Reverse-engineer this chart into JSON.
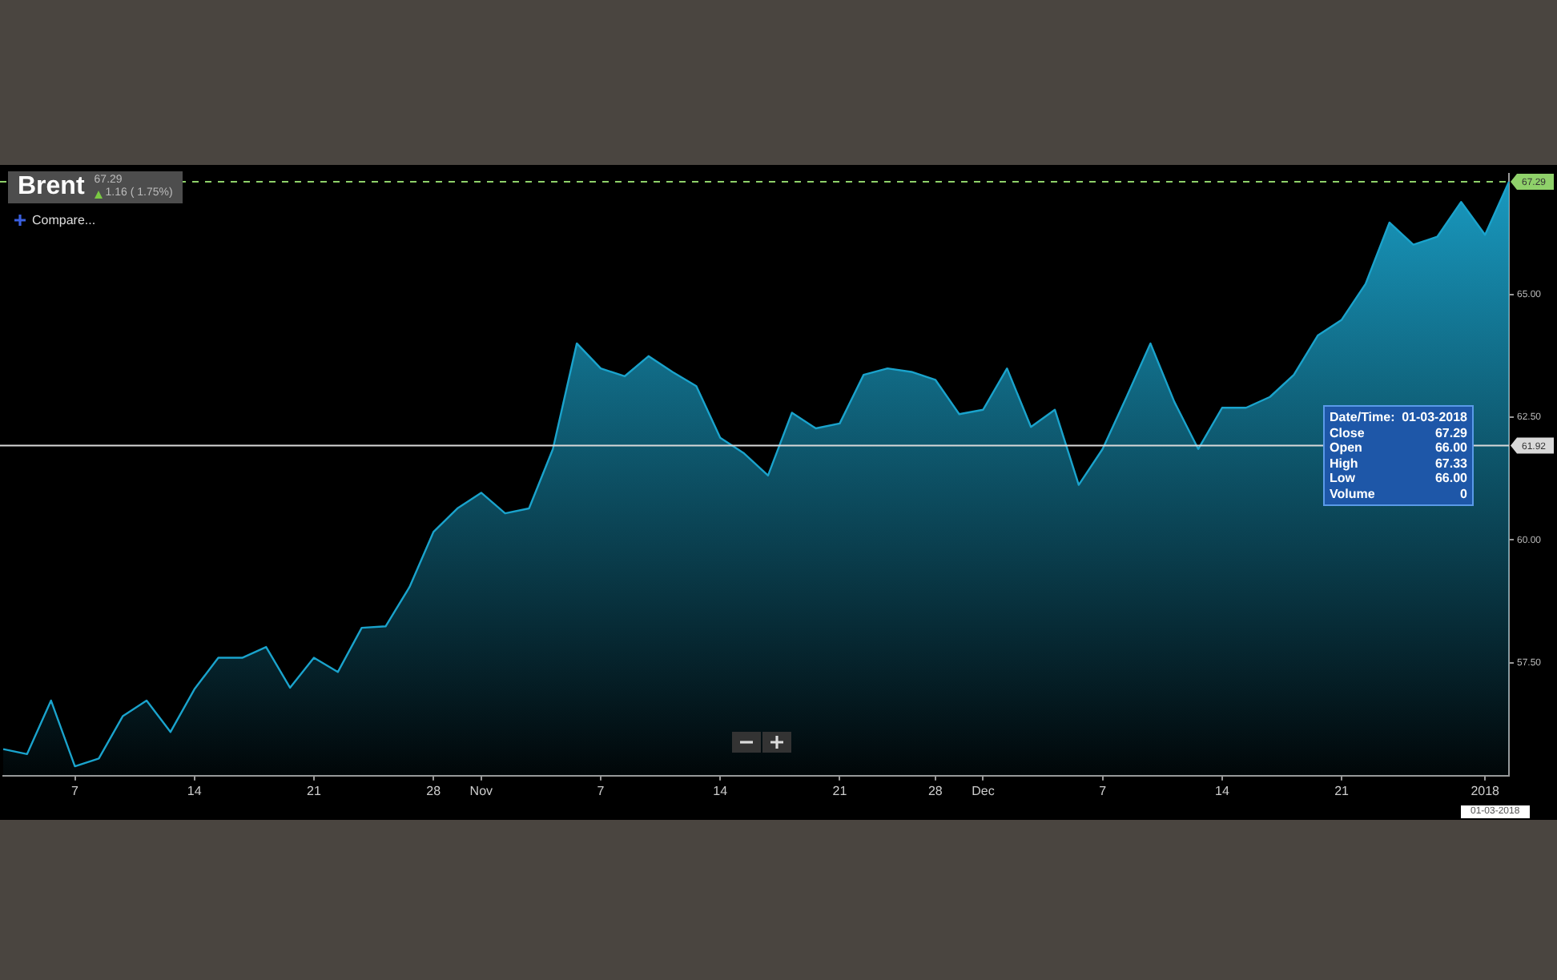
{
  "chart_data": {
    "type": "area",
    "title": "Brent",
    "subtitle": "67.29",
    "categories": [
      null,
      null,
      null,
      "7",
      null,
      null,
      null,
      null,
      "14",
      null,
      null,
      null,
      null,
      "21",
      null,
      null,
      null,
      null,
      "28",
      null,
      "Nov",
      null,
      null,
      null,
      null,
      "7",
      null,
      null,
      null,
      null,
      "14",
      null,
      null,
      null,
      null,
      "21",
      null,
      null,
      null,
      "28",
      null,
      "Dec",
      null,
      null,
      null,
      null,
      "7",
      null,
      null,
      null,
      null,
      "14",
      null,
      null,
      null,
      null,
      "21",
      null,
      null,
      null,
      null,
      null,
      "2018",
      null
    ],
    "series": [
      {
        "color": "#1aa3cc",
        "values": [
          55.74,
          55.64,
          56.73,
          55.39,
          55.55,
          56.41,
          56.73,
          56.09,
          56.96,
          57.6,
          57.6,
          57.82,
          56.99,
          57.6,
          57.31,
          58.21,
          58.24,
          59.04,
          60.16,
          60.64,
          60.96,
          60.54,
          60.64,
          61.85,
          64.0,
          63.49,
          63.33,
          63.74,
          63.42,
          63.13,
          62.08,
          61.76,
          61.31,
          62.59,
          62.27,
          62.37,
          63.36,
          63.49,
          63.42,
          63.26,
          62.56,
          62.65,
          63.49,
          62.3,
          62.65,
          61.12,
          61.85,
          62.91,
          64.0,
          62.81,
          61.85,
          62.69,
          62.69,
          62.91,
          63.36,
          64.16,
          64.48,
          65.21,
          66.46,
          66.01,
          66.17,
          66.88,
          66.21,
          67.29
        ]
      }
    ],
    "ylim": [
      55.2,
      67.45
    ],
    "yticks": [
      {
        "value": 57.5,
        "label": "57.50"
      },
      {
        "value": 60,
        "label": "60.00"
      },
      {
        "value": 62.5,
        "label": "62.50"
      },
      {
        "value": 65,
        "label": "65.00"
      }
    ],
    "ref_lines": [
      {
        "axis": "y",
        "value": 67.29,
        "label": "67.29",
        "color": "#8fd16a",
        "line_style": "dashed"
      },
      {
        "axis": "y",
        "value": 61.92,
        "label": "61.92",
        "color": "#d9d9d9",
        "line_style": "solid"
      }
    ],
    "annotations": [
      "1.16 ( 1.75%)",
      "Compare...",
      "Date/Time: 01-03-2018",
      "Close 67.29",
      "Open 66.00",
      "High 67.33",
      "Low 66.00",
      "Volume 0",
      "01-03-2018"
    ],
    "legend": false,
    "marker": "none",
    "line_style": "solid"
  }
}
